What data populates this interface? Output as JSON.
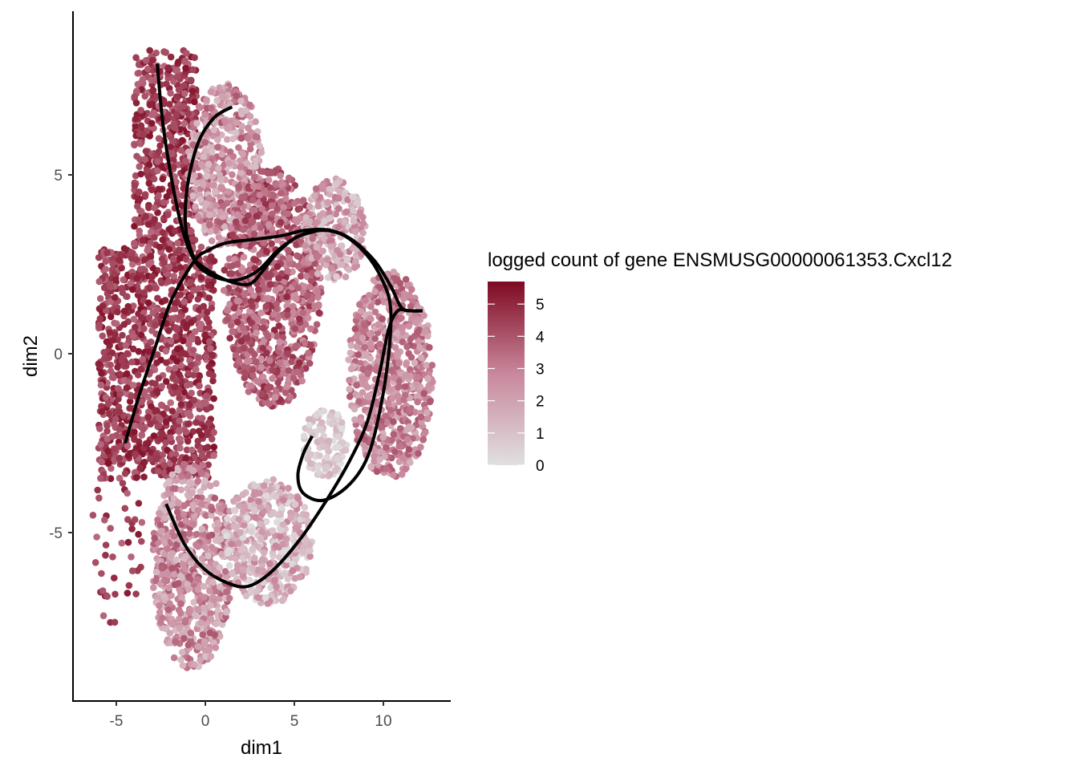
{
  "chart_data": {
    "type": "scatter",
    "xlabel": "dim1",
    "ylabel": "dim2",
    "xlim": [
      -7.5,
      13.7
    ],
    "ylim": [
      -9.8,
      9.5
    ],
    "x_ticks": [
      -5,
      0,
      5,
      10
    ],
    "y_ticks": [
      -5,
      0,
      5
    ],
    "grid": false,
    "legend": {
      "title": "logged count of gene ENSMUSG00000061353.Cxcl12",
      "placement": "right",
      "min": 0,
      "max": 5.7,
      "ticks": [
        0,
        1,
        2,
        3,
        4,
        5
      ],
      "low_color": "#e0e0e0",
      "mid_color": "#c9879c",
      "high_color": "#7e0a22"
    },
    "point_regions": [
      {
        "name": "upper-left stem",
        "x": [
          -4.0,
          -0.5
        ],
        "y": [
          3.0,
          8.5
        ],
        "expr": [
          3.5,
          5.5
        ]
      },
      {
        "name": "left column",
        "x": [
          -6.0,
          0.5
        ],
        "y": [
          -3.5,
          3.0
        ],
        "expr": [
          3.5,
          5.5
        ]
      },
      {
        "name": "upper diagonal arm",
        "x": [
          -1.0,
          3.2
        ],
        "y": [
          3.0,
          7.6
        ],
        "expr": [
          1.0,
          4.0
        ]
      },
      {
        "name": "central loop",
        "x": [
          1.0,
          6.5
        ],
        "y": [
          -1.5,
          5.2
        ],
        "expr": [
          2.5,
          5.0
        ]
      },
      {
        "name": "upper-right lobe",
        "x": [
          5.5,
          9.0
        ],
        "y": [
          2.0,
          4.9
        ],
        "expr": [
          0.5,
          3.5
        ]
      },
      {
        "name": "right arc",
        "x": [
          8.0,
          12.8
        ],
        "y": [
          -3.5,
          2.3
        ],
        "expr": [
          1.5,
          4.0
        ]
      },
      {
        "name": "inner pale cluster",
        "x": [
          5.5,
          8.0
        ],
        "y": [
          -3.5,
          -1.5
        ],
        "expr": [
          0.0,
          1.5
        ]
      },
      {
        "name": "lower-left lobe",
        "x": [
          -3.0,
          1.5
        ],
        "y": [
          -8.8,
          -3.0
        ],
        "expr": [
          1.0,
          4.0
        ]
      },
      {
        "name": "bottom lobe",
        "x": [
          1.0,
          6.0
        ],
        "y": [
          -7.0,
          -3.5
        ],
        "expr": [
          0.0,
          3.0
        ]
      },
      {
        "name": "scattered outliers",
        "x": [
          -6.5,
          -3.5
        ],
        "y": [
          -7.8,
          -2.5
        ],
        "expr": [
          3.5,
          5.5
        ]
      }
    ],
    "trajectories": [
      {
        "name": "lineage 1",
        "points": [
          [
            -4.5,
            -2.5
          ],
          [
            -3.8,
            -1.3
          ],
          [
            -2.8,
            0.2
          ],
          [
            -1.9,
            1.5
          ],
          [
            -0.6,
            2.6
          ],
          [
            0.2,
            2.9
          ],
          [
            1.2,
            3.1
          ],
          [
            2.8,
            3.2
          ],
          [
            4.3,
            3.3
          ],
          [
            5.6,
            3.45
          ],
          [
            7.0,
            3.45
          ],
          [
            8.2,
            3.2
          ],
          [
            9.5,
            2.6
          ],
          [
            10.4,
            1.9
          ],
          [
            11.0,
            1.3
          ],
          [
            11.6,
            1.2
          ],
          [
            12.2,
            1.2
          ]
        ]
      },
      {
        "name": "lineage 2",
        "points": [
          [
            -2.7,
            8.1
          ],
          [
            -2.4,
            6.5
          ],
          [
            -1.9,
            4.9
          ],
          [
            -1.3,
            3.5
          ],
          [
            -0.6,
            2.6
          ],
          [
            0.3,
            2.2
          ],
          [
            1.6,
            2.05
          ],
          [
            2.9,
            2.3
          ],
          [
            4.1,
            2.9
          ],
          [
            5.3,
            3.3
          ],
          [
            6.6,
            3.45
          ],
          [
            7.8,
            3.3
          ],
          [
            9.0,
            2.8
          ],
          [
            9.9,
            2.1
          ],
          [
            10.4,
            1.3
          ],
          [
            10.3,
            0.0
          ],
          [
            9.8,
            -1.6
          ],
          [
            9.1,
            -2.9
          ],
          [
            8.0,
            -3.7
          ],
          [
            6.6,
            -4.1
          ],
          [
            5.5,
            -3.9
          ],
          [
            5.2,
            -3.4
          ],
          [
            5.5,
            -2.8
          ],
          [
            6.0,
            -2.3
          ]
        ]
      },
      {
        "name": "lineage 3",
        "points": [
          [
            -0.6,
            2.6
          ],
          [
            0.4,
            2.25
          ],
          [
            1.5,
            2.0
          ],
          [
            2.5,
            1.95
          ],
          [
            3.2,
            2.3
          ],
          [
            4.0,
            2.8
          ],
          [
            5.1,
            3.25
          ],
          [
            6.4,
            3.45
          ]
        ]
      },
      {
        "name": "lineage 4",
        "points": [
          [
            -0.6,
            2.6
          ],
          [
            -1.1,
            3.5
          ],
          [
            -1.0,
            4.7
          ],
          [
            -0.4,
            5.9
          ],
          [
            0.5,
            6.6
          ],
          [
            1.5,
            6.9
          ]
        ]
      },
      {
        "name": "lineage 5",
        "points": [
          [
            -2.2,
            -4.2
          ],
          [
            -1.2,
            -5.3
          ],
          [
            -0.1,
            -6.0
          ],
          [
            1.2,
            -6.4
          ],
          [
            2.4,
            -6.5
          ],
          [
            3.7,
            -6.1
          ],
          [
            5.3,
            -5.2
          ],
          [
            6.8,
            -4.1
          ],
          [
            8.1,
            -3.0
          ],
          [
            9.1,
            -1.9
          ],
          [
            9.8,
            -0.5
          ],
          [
            10.3,
            0.7
          ],
          [
            10.8,
            1.2
          ],
          [
            11.4,
            1.2
          ],
          [
            12.2,
            1.2
          ]
        ]
      }
    ]
  }
}
